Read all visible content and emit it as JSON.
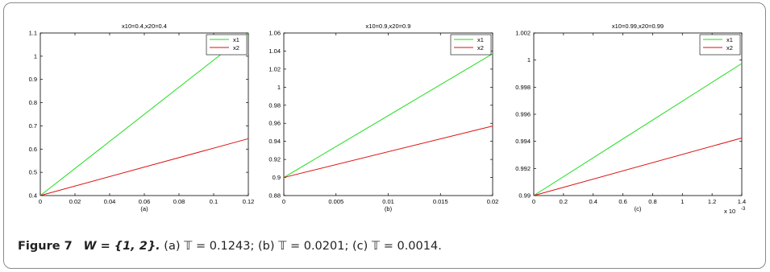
{
  "caption": {
    "figure_label": "Figure 7",
    "title": "W = {1, 2}.",
    "text": "(a) 𝕋 = 0.1243; (b) 𝕋 = 0.0201; (c) 𝕋 = 0.0014."
  },
  "colors": {
    "x1": "#22dd22",
    "x2": "#dd1111",
    "axis": "#000000",
    "frame": "#8a8a8a"
  },
  "chart_data": [
    {
      "type": "line",
      "title": "x10=0.4,x20=0.4",
      "xlabel": "(a)",
      "xlim": [
        0,
        0.12
      ],
      "ylim": [
        0.4,
        1.1
      ],
      "x_ticks": [
        0,
        0.02,
        0.04,
        0.06,
        0.08,
        0.1,
        0.12
      ],
      "x_tick_labels": [
        "0",
        "0.02",
        "0.04",
        "0.06",
        "0.08",
        "0.1",
        "0.12"
      ],
      "y_ticks": [
        0.4,
        0.5,
        0.6,
        0.7,
        0.8,
        0.9,
        1.0,
        1.1
      ],
      "y_tick_labels": [
        "0.4",
        "0.5",
        "0.6",
        "0.7",
        "0.8",
        "0.9",
        "1",
        "1.1"
      ],
      "x_exponent": "",
      "legend": "top-right",
      "series": [
        {
          "name": "x1",
          "color": "#22dd22",
          "x": [
            0,
            0.12
          ],
          "y": [
            0.4,
            1.1
          ]
        },
        {
          "name": "x2",
          "color": "#dd1111",
          "x": [
            0,
            0.12
          ],
          "y": [
            0.4,
            0.645
          ]
        }
      ]
    },
    {
      "type": "line",
      "title": "x10=0.9,x20=0.9",
      "xlabel": "(b)",
      "xlim": [
        0,
        0.02
      ],
      "ylim": [
        0.88,
        1.06
      ],
      "x_ticks": [
        0,
        0.005,
        0.01,
        0.015,
        0.02
      ],
      "x_tick_labels": [
        "0",
        "0.005",
        "0.01",
        "0.015",
        "0.02"
      ],
      "y_ticks": [
        0.88,
        0.9,
        0.92,
        0.94,
        0.96,
        0.98,
        1.0,
        1.02,
        1.04,
        1.06
      ],
      "y_tick_labels": [
        "0.88",
        "0.9",
        "0.92",
        "0.94",
        "0.96",
        "0.98",
        "1",
        "1.02",
        "1.04",
        "1.06"
      ],
      "x_exponent": "",
      "legend": "top-right",
      "series": [
        {
          "name": "x1",
          "color": "#22dd22",
          "x": [
            0,
            0.02
          ],
          "y": [
            0.9,
            1.037
          ]
        },
        {
          "name": "x2",
          "color": "#dd1111",
          "x": [
            0,
            0.02
          ],
          "y": [
            0.9,
            0.957
          ]
        }
      ]
    },
    {
      "type": "line",
      "title": "x10=0.99,x20=0.99",
      "xlabel": "(c)",
      "xlim": [
        0,
        1.4
      ],
      "ylim": [
        0.99,
        1.002
      ],
      "x_ticks": [
        0,
        0.2,
        0.4,
        0.6,
        0.8,
        1.0,
        1.2,
        1.4
      ],
      "x_tick_labels": [
        "0",
        "0.2",
        "0.4",
        "0.6",
        "0.8",
        "1",
        "1.2",
        "1.4"
      ],
      "y_ticks": [
        0.99,
        0.992,
        0.994,
        0.996,
        0.998,
        1.0,
        1.002
      ],
      "y_tick_labels": [
        "0.99",
        "0.992",
        "0.994",
        "0.996",
        "0.998",
        "1",
        "1.002"
      ],
      "x_exponent": "x 10",
      "x_exponent_power": "-3",
      "legend": "top-right",
      "series": [
        {
          "name": "x1",
          "color": "#22dd22",
          "x": [
            0,
            1.4
          ],
          "y": [
            0.99,
            0.99975
          ]
        },
        {
          "name": "x2",
          "color": "#dd1111",
          "x": [
            0,
            1.4
          ],
          "y": [
            0.99,
            0.99425
          ]
        }
      ]
    }
  ]
}
